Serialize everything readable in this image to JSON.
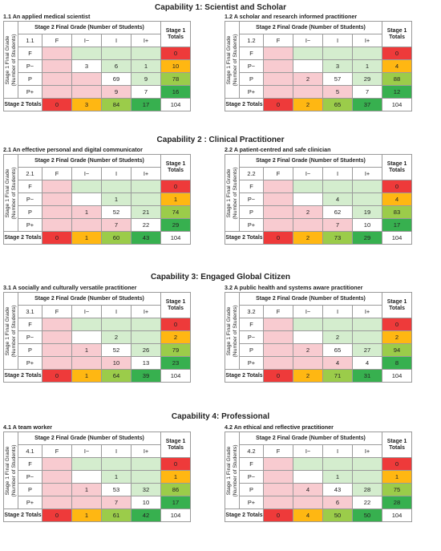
{
  "header_label": "Stage 2 Final Grade (Number of Students)",
  "side_label_1": "Stage 1 Final Grade",
  "side_label_2": "(Number of Students)",
  "totals_header_1": "Stage 1",
  "totals_header_2": "Totals",
  "stage2_totals_label": "Stage 2 Totals",
  "columns": [
    "F",
    "I−",
    "I",
    "I+"
  ],
  "rows": [
    "F",
    "P−",
    "P",
    "P+"
  ],
  "capabilities": [
    {
      "title": "Capability 1: Scientist and Scholar",
      "panels": [
        {
          "subtitle": "1.1 An applied medical scientist",
          "code": "1.1",
          "cells": [
            [
              "",
              "",
              "",
              ""
            ],
            [
              "",
              "3",
              "6",
              "1"
            ],
            [
              "",
              "",
              "69",
              "9"
            ],
            [
              "",
              "",
              "9",
              "7"
            ]
          ],
          "row_totals": [
            "0",
            "10",
            "78",
            "16"
          ],
          "col_totals": [
            "0",
            "3",
            "84",
            "17"
          ],
          "grand_total": "104"
        },
        {
          "subtitle": "1.2 A scholar and research informed practitioner",
          "code": "1.2",
          "cells": [
            [
              "",
              "",
              "",
              ""
            ],
            [
              "",
              "",
              "3",
              "1"
            ],
            [
              "",
              "2",
              "57",
              "29"
            ],
            [
              "",
              "",
              "5",
              "7"
            ]
          ],
          "row_totals": [
            "0",
            "4",
            "88",
            "12"
          ],
          "col_totals": [
            "0",
            "2",
            "65",
            "37"
          ],
          "grand_total": "104"
        }
      ]
    },
    {
      "title": "Capability 2 : Clinical Practitioner",
      "panels": [
        {
          "subtitle": "2.1 An effective personal and digital communicator",
          "code": "2.1",
          "cells": [
            [
              "",
              "",
              "",
              ""
            ],
            [
              "",
              "",
              "1",
              ""
            ],
            [
              "",
              "1",
              "52",
              "21"
            ],
            [
              "",
              "",
              "7",
              "22"
            ]
          ],
          "row_totals": [
            "0",
            "1",
            "74",
            "29"
          ],
          "col_totals": [
            "0",
            "1",
            "60",
            "43"
          ],
          "grand_total": "104"
        },
        {
          "subtitle": "2.2 A patient-centred and safe clinician",
          "code": "2.2",
          "cells": [
            [
              "",
              "",
              "",
              ""
            ],
            [
              "",
              "",
              "4",
              ""
            ],
            [
              "",
              "2",
              "62",
              "19"
            ],
            [
              "",
              "",
              "7",
              "10"
            ]
          ],
          "row_totals": [
            "0",
            "4",
            "83",
            "17"
          ],
          "col_totals": [
            "0",
            "2",
            "73",
            "29"
          ],
          "grand_total": "104"
        }
      ]
    },
    {
      "title": "Capability 3: Engaged Global Citizen",
      "panels": [
        {
          "subtitle": "3.1 A socially and culturally versatile practitioner",
          "code": "3.1",
          "cells": [
            [
              "",
              "",
              "",
              ""
            ],
            [
              "",
              "",
              "2",
              ""
            ],
            [
              "",
              "1",
              "52",
              "26"
            ],
            [
              "",
              "",
              "10",
              "13"
            ]
          ],
          "row_totals": [
            "0",
            "2",
            "79",
            "23"
          ],
          "col_totals": [
            "0",
            "1",
            "64",
            "39"
          ],
          "grand_total": "104"
        },
        {
          "subtitle": "3.2 A public health and systems aware practitioner",
          "code": "3.2",
          "cells": [
            [
              "",
              "",
              "",
              ""
            ],
            [
              "",
              "",
              "2",
              ""
            ],
            [
              "",
              "2",
              "65",
              "27"
            ],
            [
              "",
              "",
              "4",
              "4"
            ]
          ],
          "row_totals": [
            "0",
            "2",
            "94",
            "8"
          ],
          "col_totals": [
            "0",
            "2",
            "71",
            "31"
          ],
          "grand_total": "104"
        }
      ]
    },
    {
      "title": "Capability 4: Professional",
      "panels": [
        {
          "subtitle": "4.1 A team worker",
          "code": "4.1",
          "cells": [
            [
              "",
              "",
              "",
              ""
            ],
            [
              "",
              "",
              "1",
              ""
            ],
            [
              "",
              "1",
              "53",
              "32"
            ],
            [
              "",
              "",
              "7",
              "10"
            ]
          ],
          "row_totals": [
            "0",
            "1",
            "86",
            "17"
          ],
          "col_totals": [
            "0",
            "1",
            "61",
            "42"
          ],
          "grand_total": "104"
        },
        {
          "subtitle": "4.2 An ethical and reflective practitioner",
          "code": "4.2",
          "cells": [
            [
              "",
              "",
              "",
              ""
            ],
            [
              "",
              "",
              "1",
              ""
            ],
            [
              "",
              "4",
              "43",
              "28"
            ],
            [
              "",
              "",
              "6",
              "22"
            ]
          ],
          "row_totals": [
            "0",
            "1",
            "75",
            "28"
          ],
          "col_totals": [
            "0",
            "4",
            "50",
            "50"
          ],
          "grand_total": "104"
        }
      ]
    }
  ],
  "colors": {
    "red_zero": "#ee3a3a",
    "orange_low": "#ffb712",
    "lime_mid": "#9bcc4a",
    "green_high": "#37b04f",
    "pink_cell": "#f8cbd0",
    "light_green_cell": "#d4edce"
  }
}
